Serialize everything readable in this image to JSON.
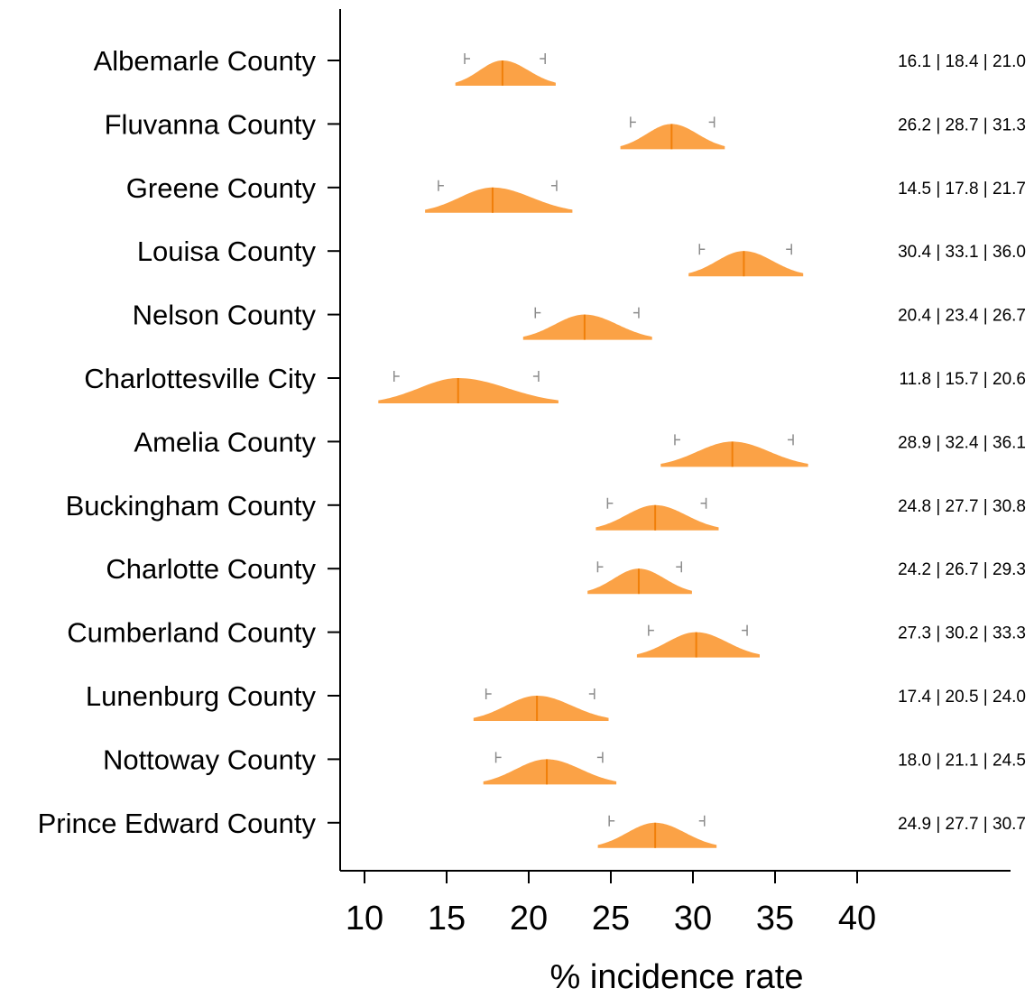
{
  "chart_data": {
    "type": "density-interval",
    "xlabel": "% incidence rate",
    "xticks": [
      10,
      15,
      20,
      25,
      30,
      35,
      40
    ],
    "xlim": [
      9.3,
      46.2
    ],
    "colors": {
      "fill": "#fba246",
      "median": "#f07f0a",
      "interval": "#8c8c8c",
      "axis": "#000000"
    },
    "rows": [
      {
        "label": "Albemarle County",
        "low": 16.1,
        "median": 18.4,
        "high": 21.0,
        "summary": "16.1 | 18.4 | 21.0"
      },
      {
        "label": "Fluvanna County",
        "low": 26.2,
        "median": 28.7,
        "high": 31.3,
        "summary": "26.2 | 28.7 | 31.3"
      },
      {
        "label": "Greene County",
        "low": 14.5,
        "median": 17.8,
        "high": 21.7,
        "summary": "14.5 | 17.8 | 21.7"
      },
      {
        "label": "Louisa County",
        "low": 30.4,
        "median": 33.1,
        "high": 36.0,
        "summary": "30.4 | 33.1 | 36.0"
      },
      {
        "label": "Nelson County",
        "low": 20.4,
        "median": 23.4,
        "high": 26.7,
        "summary": "20.4 | 23.4 | 26.7"
      },
      {
        "label": "Charlottesville City",
        "low": 11.8,
        "median": 15.7,
        "high": 20.6,
        "summary": "11.8 | 15.7 | 20.6"
      },
      {
        "label": "Amelia County",
        "low": 28.9,
        "median": 32.4,
        "high": 36.1,
        "summary": "28.9 | 32.4 | 36.1"
      },
      {
        "label": "Buckingham County",
        "low": 24.8,
        "median": 27.7,
        "high": 30.8,
        "summary": "24.8 | 27.7 | 30.8"
      },
      {
        "label": "Charlotte County",
        "low": 24.2,
        "median": 26.7,
        "high": 29.3,
        "summary": "24.2 | 26.7 | 29.3"
      },
      {
        "label": "Cumberland County",
        "low": 27.3,
        "median": 30.2,
        "high": 33.3,
        "summary": "27.3 | 30.2 | 33.3"
      },
      {
        "label": "Lunenburg County",
        "low": 17.4,
        "median": 20.5,
        "high": 24.0,
        "summary": "17.4 | 20.5 | 24.0"
      },
      {
        "label": "Nottoway County",
        "low": 18.0,
        "median": 21.1,
        "high": 24.5,
        "summary": "18.0 | 21.1 | 24.5"
      },
      {
        "label": "Prince Edward County",
        "low": 24.9,
        "median": 27.7,
        "high": 30.7,
        "summary": "24.9 | 27.7 | 30.7"
      }
    ]
  }
}
